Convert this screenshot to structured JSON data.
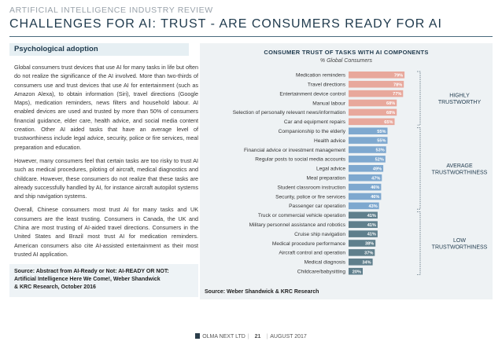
{
  "header": {
    "top_label": "ARTIFICIAL INTELLIGENCE INDUSTRY REVIEW",
    "title": "CHALLENGES FOR AI: TRUST - ARE CONSUMERS READY FOR AI"
  },
  "section": {
    "heading": "Psychological adoption",
    "paragraphs": [
      "Global consumers trust devices that use AI for many tasks in life but often do not realize the significance of the AI involved. More than two-thirds of consumers use and trust devices that use AI for entertainment (such as Amazon Alexa), to obtain information (Siri), travel directions (Google Maps), medication reminders, news filters and household labour. AI enabled devices are used and trusted by more than 50% of consumers financial guidance, elder care, health advice, and social media content creation. Other AI aided tasks that have an average level of trustworthiness include legal advice, security, police or fire services, meal preparation and education.",
      "However, many consumers feel that certain tasks are too risky to trust AI such as medical procedures, piloting of aircraft, medical diagnostics and childcare. However, these consumers do not realize that these tasks are already successfully handled by AI, for instance aircraft autopilot systems and ship navigation systems.",
      "Overall, Chinese consumers most trust AI for many tasks and UK consumers are the least trusting. Consumers in Canada, the UK and China are most trusting of AI-aided travel directions. Consumers in the United States and Brazil most trust AI for medication reminders. American consumers also cite AI-assisted entertainment as their most trusted AI application."
    ],
    "source_line1": "Source: Abstract from AI-Ready or Not: AI-READY OR NOT:",
    "source_line2": "Artificial Intelligence Here We Come!, Weber Shandwick",
    "source_line3": "& KRC Research, October 2016"
  },
  "colors": {
    "high": "#e8a89c",
    "average": "#7ea8cf",
    "low": "#5f7f8c",
    "title": "#1f3a4d"
  },
  "chart_data": {
    "type": "bar",
    "orientation": "horizontal",
    "title": "CONSUMER TRUST OF TASKS WITH AI COMPONENTS",
    "subtitle": "% Global Consumers",
    "categories": [
      "Medication reminders",
      "Travel directions",
      "Entertainment device control",
      "Manual labour",
      "Selection of personally relevant news/information",
      "Car and equipment repairs",
      "Companionship to the elderly",
      "Health advice",
      "Financial advice or investment management",
      "Regular posts to social media accounts",
      "Legal advice",
      "Meal preparation",
      "Student classroom instruction",
      "Security, police or fire services",
      "Passenger car operation",
      "Truck or commercial vehicle operation",
      "Military personnel assistance and robotics",
      "Cruise ship navigation",
      "Medical procedure performance",
      "Aircraft control and operation",
      "Medical diagnosis",
      "Childcare/babysitting"
    ],
    "values": [
      79,
      78,
      77,
      68,
      68,
      65,
      55,
      55,
      53,
      52,
      49,
      47,
      46,
      46,
      43,
      41,
      41,
      41,
      38,
      37,
      34,
      20
    ],
    "value_labels": [
      "79%",
      "78%",
      "77%",
      "68%",
      "68%",
      "65%",
      "55%",
      "55%",
      "53%",
      "52%",
      "49%",
      "47%",
      "46%",
      "46%",
      "43%",
      "41%",
      "41%",
      "41%",
      "38%",
      "37%",
      "34%",
      "20%"
    ],
    "groups": [
      "high",
      "high",
      "high",
      "high",
      "high",
      "high",
      "average",
      "average",
      "average",
      "average",
      "average",
      "average",
      "average",
      "average",
      "average",
      "low",
      "low",
      "low",
      "low",
      "low",
      "low",
      "low"
    ],
    "xlim": [
      0,
      100
    ],
    "brackets": [
      {
        "line1": "HIGHLY",
        "line2": "TRUSTWORTHY",
        "from": 0,
        "to": 5
      },
      {
        "line1": "AVERAGE",
        "line2": "TRUSTWORTHINESS",
        "from": 6,
        "to": 14
      },
      {
        "line1": "LOW",
        "line2": "TRUSTWORTHINESS",
        "from": 15,
        "to": 21
      }
    ],
    "source": "Source: Weber Shandwick & KRC Research"
  },
  "footer": {
    "company": "OLMA NEXT LTD",
    "page": "21",
    "date": "AUGUST 2017"
  }
}
